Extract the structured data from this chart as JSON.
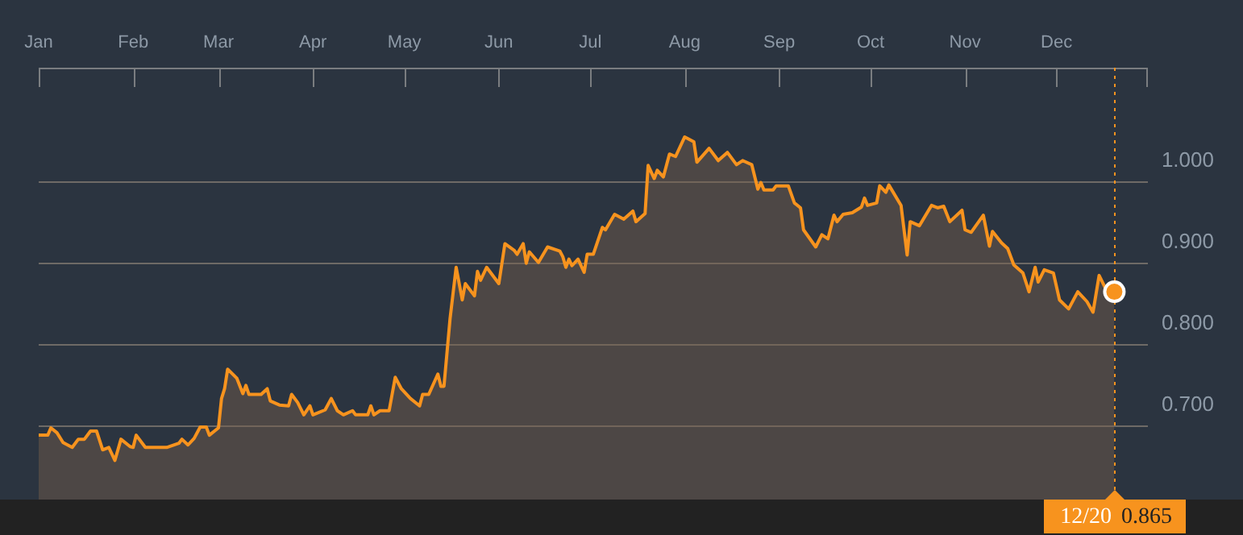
{
  "chart_data": {
    "type": "area",
    "x": [
      "--01-01",
      "--01-04",
      "--01-05",
      "--01-07",
      "--01-09",
      "--01-12",
      "--01-14",
      "--01-16",
      "--01-18",
      "--01-20",
      "--01-22",
      "--01-24",
      "--01-26",
      "--01-28",
      "--01-31",
      "--02-01",
      "--02-02",
      "--02-05",
      "--02-12",
      "--02-16",
      "--02-17",
      "--02-19",
      "--02-21",
      "--02-23",
      "--02-25",
      "--02-26",
      "--03-01",
      "--03-02",
      "--03-03",
      "--03-04",
      "--03-07",
      "--03-09",
      "--03-10",
      "--03-11",
      "--03-15",
      "--03-17",
      "--03-18",
      "--03-21",
      "--03-24",
      "--03-25",
      "--03-27",
      "--03-29",
      "--03-31",
      "--04-01",
      "--04-05",
      "--04-07",
      "--04-09",
      "--04-11",
      "--04-14",
      "--04-15",
      "--04-19",
      "--04-20",
      "--04-21",
      "--04-23",
      "--04-26",
      "--04-28",
      "--04-30",
      "--05-03",
      "--05-06",
      "--05-07",
      "--05-09",
      "--05-12",
      "--05-13",
      "--05-14",
      "--05-16",
      "--05-18",
      "--05-20",
      "--05-21",
      "--05-24",
      "--05-25",
      "--05-26",
      "--05-28",
      "--06-01",
      "--06-03",
      "--06-06",
      "--06-07",
      "--06-09",
      "--06-10",
      "--06-11",
      "--06-14",
      "--06-17",
      "--06-21",
      "--06-22",
      "--06-23",
      "--06-24",
      "--06-25",
      "--06-27",
      "--06-29",
      "--06-30",
      "--07-02",
      "--07-05",
      "--07-06",
      "--07-09",
      "--07-12",
      "--07-15",
      "--07-16",
      "--07-19",
      "--07-20",
      "--07-22",
      "--07-23",
      "--07-25",
      "--07-27",
      "--07-29",
      "--08-01",
      "--08-04",
      "--08-05",
      "--08-09",
      "--08-12",
      "--08-15",
      "--08-18",
      "--08-20",
      "--08-23",
      "--08-25",
      "--08-26",
      "--08-27",
      "--08-30",
      "--08-31",
      "--09-04",
      "--09-06",
      "--09-08",
      "--09-09",
      "--09-13",
      "--09-15",
      "--09-17",
      "--09-19",
      "--09-20",
      "--09-22",
      "--09-25",
      "--09-28",
      "--09-29",
      "--09-30",
      "--10-03",
      "--10-04",
      "--10-06",
      "--10-07",
      "--10-11",
      "--10-13",
      "--10-14",
      "--10-17",
      "--10-21",
      "--10-23",
      "--10-25",
      "--10-27",
      "--10-31",
      "--11-01",
      "--11-03",
      "--11-07",
      "--11-09",
      "--11-10",
      "--11-13",
      "--11-15",
      "--11-17",
      "--11-20",
      "--11-22",
      "--11-24",
      "--11-25",
      "--11-27",
      "--11-30",
      "--12-02",
      "--12-05",
      "--12-08",
      "--12-11",
      "--12-13",
      "--12-15",
      "--12-17",
      "--12-20"
    ],
    "series": [
      {
        "color": "#f7931e",
        "values": [
          0.689,
          0.689,
          0.698,
          0.692,
          0.68,
          0.674,
          0.684,
          0.684,
          0.694,
          0.694,
          0.671,
          0.674,
          0.658,
          0.684,
          0.675,
          0.674,
          0.689,
          0.674,
          0.674,
          0.679,
          0.684,
          0.677,
          0.685,
          0.699,
          0.699,
          0.689,
          0.698,
          0.734,
          0.746,
          0.77,
          0.759,
          0.74,
          0.75,
          0.739,
          0.739,
          0.746,
          0.731,
          0.726,
          0.725,
          0.739,
          0.729,
          0.714,
          0.725,
          0.714,
          0.72,
          0.734,
          0.719,
          0.714,
          0.719,
          0.714,
          0.714,
          0.725,
          0.714,
          0.719,
          0.719,
          0.76,
          0.746,
          0.734,
          0.725,
          0.739,
          0.739,
          0.764,
          0.749,
          0.749,
          0.832,
          0.895,
          0.855,
          0.875,
          0.86,
          0.89,
          0.879,
          0.895,
          0.875,
          0.924,
          0.916,
          0.911,
          0.924,
          0.9,
          0.914,
          0.901,
          0.92,
          0.915,
          0.908,
          0.895,
          0.905,
          0.897,
          0.905,
          0.889,
          0.911,
          0.911,
          0.944,
          0.941,
          0.96,
          0.954,
          0.964,
          0.951,
          0.961,
          1.02,
          1.004,
          1.014,
          1.006,
          1.034,
          1.031,
          1.055,
          1.049,
          1.024,
          1.041,
          1.026,
          1.036,
          1.021,
          1.026,
          1.021,
          0.991,
          0.999,
          0.99,
          0.99,
          0.995,
          0.995,
          0.974,
          0.968,
          0.941,
          0.92,
          0.935,
          0.93,
          0.959,
          0.951,
          0.96,
          0.962,
          0.969,
          0.98,
          0.971,
          0.974,
          0.995,
          0.987,
          0.996,
          0.971,
          0.91,
          0.951,
          0.946,
          0.971,
          0.968,
          0.97,
          0.951,
          0.965,
          0.941,
          0.938,
          0.959,
          0.921,
          0.939,
          0.925,
          0.918,
          0.898,
          0.888,
          0.865,
          0.895,
          0.877,
          0.892,
          0.888,
          0.855,
          0.844,
          0.865,
          0.853,
          0.84,
          0.885,
          0.87,
          0.865
        ]
      }
    ],
    "xlim": [
      "--01-01",
      "--12-31"
    ],
    "xticks": [
      {
        "value": "--01-01",
        "label": "Jan"
      },
      {
        "value": "--02-01",
        "label": "Feb"
      },
      {
        "value": "--03-01",
        "label": "Mar"
      },
      {
        "value": "--04-01",
        "label": "Apr"
      },
      {
        "value": "--05-01",
        "label": "May"
      },
      {
        "value": "--06-01",
        "label": "Jun"
      },
      {
        "value": "--07-01",
        "label": "Jul"
      },
      {
        "value": "--08-01",
        "label": "Aug"
      },
      {
        "value": "--09-01",
        "label": "Sep"
      },
      {
        "value": "--10-01",
        "label": "Oct"
      },
      {
        "value": "--11-01",
        "label": "Nov"
      },
      {
        "value": "--12-01",
        "label": "Dec"
      }
    ],
    "ylim": [
      0.61,
      1.14
    ],
    "yticks": [
      {
        "value": 0.7,
        "label": "0.700"
      },
      {
        "value": 0.8,
        "label": "0.800"
      },
      {
        "value": 0.9,
        "label": "0.900"
      },
      {
        "value": 1.0,
        "label": "1.000"
      }
    ],
    "grid": "y",
    "legend": false,
    "marker": "none",
    "line_style": "solid",
    "ref_lines": [
      {
        "axis": "x",
        "value": "--12-20",
        "label": "12/20",
        "color": "#f7931e",
        "line_style": "dotted"
      }
    ],
    "annotations": [
      "0.865"
    ]
  }
}
